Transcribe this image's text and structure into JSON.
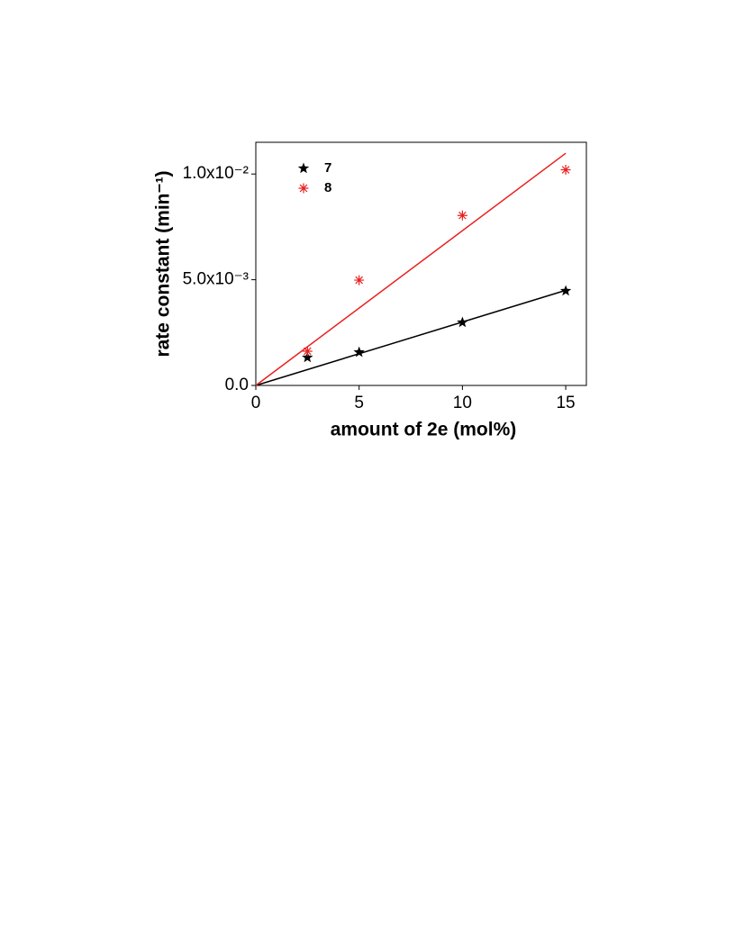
{
  "chart_data": {
    "type": "scatter",
    "x_label": "amount of 2e (mol%)",
    "y_label": "rate constant (min⁻¹)",
    "xlim": [
      0,
      16
    ],
    "xticks": [
      0,
      5,
      10,
      15
    ],
    "ylim": [
      0,
      0.0115
    ],
    "yticks": [
      {
        "value": 0,
        "label": "0.0"
      },
      {
        "value": 0.005,
        "label": "5.0x10⁻³"
      },
      {
        "value": 0.01,
        "label": "1.0x10⁻²"
      }
    ],
    "fit_x": [
      0,
      15
    ],
    "series": [
      {
        "name": "7",
        "color": "#000000",
        "marker": "star",
        "x": [
          2.5,
          5,
          10,
          15
        ],
        "values": [
          0.00132,
          0.00157,
          0.00298,
          0.00447
        ],
        "fit": [
          0,
          0.0045
        ]
      },
      {
        "name": "8",
        "color": "#e8211e",
        "marker": "asterisk",
        "x": [
          2.5,
          5,
          10,
          15
        ],
        "values": [
          0.00162,
          0.00498,
          0.00804,
          0.0102
        ],
        "fit": [
          0,
          0.01098
        ]
      }
    ]
  }
}
